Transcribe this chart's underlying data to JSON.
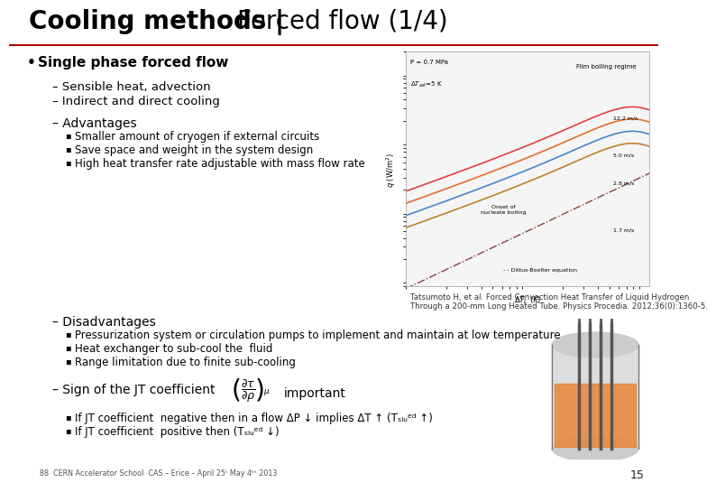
{
  "title_bold": "Cooling methods | ",
  "title_normal": "Forced flow (1/4)",
  "title_fontsize": 20,
  "line_color": "#b30000",
  "bg_color": "#ffffff",
  "bullet_main": "Single phase forced flow",
  "sub1": "– Sensible heat, advection",
  "sub2": "– Indirect and direct cooling",
  "adv_header": "– Advantages",
  "adv_bullets": [
    "Smaller amount of cryogen if external circuits",
    "Save space and weight in the system design",
    "High heat transfer rate adjustable with mass flow rate"
  ],
  "ref_text": "Tatsumoto H, et al. Forced Convection Heat Transfer of Liquid Hydrogen\nThrough a 200-mm Long Heated Tube. Physics Procedia. 2012;36(0):1360-5.",
  "disadv_header": "– Disadvantages",
  "disadv_bullets": [
    "Pressurization system or circulation pumps to implement and maintain at low temperature",
    "Heat exchanger to sub-cool the  fluid",
    "Range limitation due to finite sub-cooling"
  ],
  "jt_header": "– Sign of the JT coefficient",
  "jt_suffix": "important",
  "jt_bullet1": "If JT coefficient  negative then in a flow ΔP ↓ implies ΔT ↑ (Tₛₗᵤᵉᵈ ↑)",
  "jt_bullet2": "If JT coefficient  positive then (Tₛₗᵤᵉᵈ ↓)",
  "footer_text": "88  CERN Accelerator School  CAS – Erice – April 25ᵗ May 4ᵗʰ 2013",
  "page_num": "15",
  "footer_color": "#555555",
  "logo_color": "#8b1a1a",
  "chart_bg": "#f5f5f5"
}
